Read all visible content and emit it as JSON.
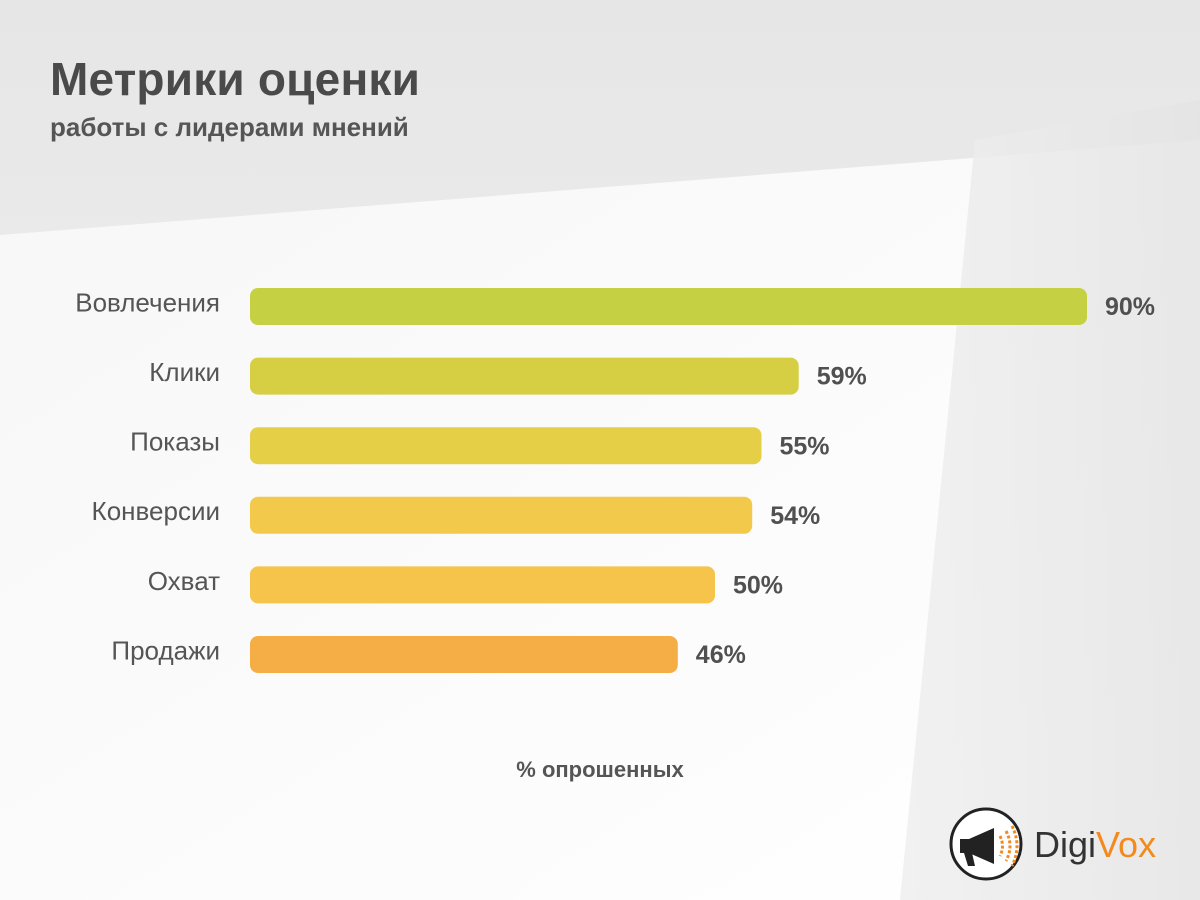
{
  "header": {
    "title": "Метрики оценки",
    "subtitle": "работы с лидерами мнений"
  },
  "chart_data": {
    "type": "bar",
    "orientation": "horizontal",
    "title": "Метрики оценки",
    "subtitle": "работы с лидерами мнений",
    "categories": [
      "Вовлечения",
      "Клики",
      "Показы",
      "Конверсии",
      "Охват",
      "Продажи"
    ],
    "values": [
      90,
      59,
      55,
      54,
      50,
      46
    ],
    "value_labels": [
      "90%",
      "59%",
      "55%",
      "54%",
      "50%",
      "46%"
    ],
    "bar_colors": [
      "#c5d042",
      "#d6cf43",
      "#e5cf46",
      "#f2c94b",
      "#f6c44b",
      "#f4ae45"
    ],
    "xlabel": "% опрошенных",
    "ylabel": "",
    "xlim": [
      0,
      100
    ],
    "grid": false,
    "legend": "none"
  },
  "brand": {
    "name_part1": "Digi",
    "name_part2": "Vox",
    "accent": "#f28a1e",
    "icon": "megaphone-icon"
  }
}
